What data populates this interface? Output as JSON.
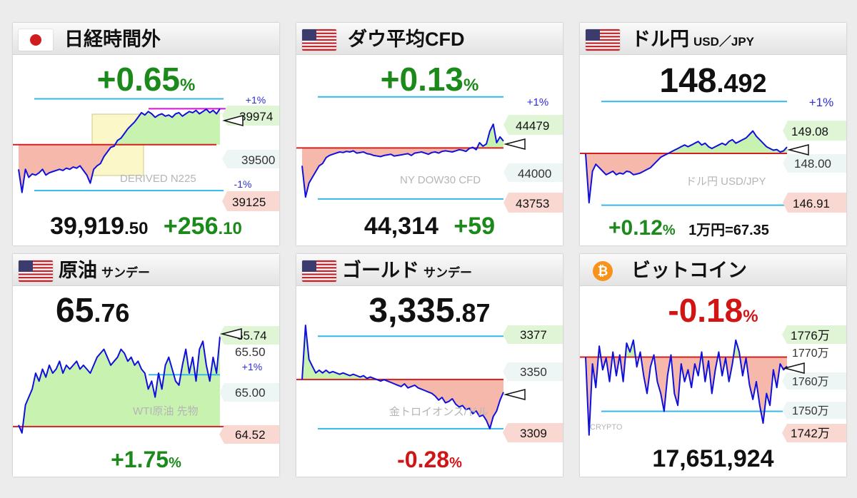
{
  "colors": {
    "up": "#1b8a1b",
    "down": "#d11414",
    "line": "#1010dd",
    "green_fill": "#c8f2b0",
    "red_fill": "#f6b8aa",
    "ref_red": "#d22020",
    "band_blue": "#34b8e8",
    "magenta": "#dd10dd"
  },
  "cards": [
    {
      "title": "日経時間外",
      "subtitle": "",
      "flag": "jp-flag",
      "headline_main": "+0.65",
      "headline_suffix": "%",
      "footer_main": "39,919",
      "footer_decimal": ".50",
      "footer_change": "+256",
      "footer_change_decimal": ".10",
      "watermark": "DERIVED N225",
      "band_label_upper": "+1%",
      "band_label_lower": "-1%",
      "tag_top": "39974",
      "tag_mid": "39500",
      "tag_bottom": "39125"
    },
    {
      "title": "ダウ平均CFD",
      "subtitle": "",
      "flag": "us-flag",
      "headline_main": "+0.13",
      "headline_suffix": "%",
      "footer_main": "44,314",
      "footer_change": "+59",
      "watermark": "NY DOW30 CFD",
      "band_label_upper": "+1%",
      "tag_top": "44479",
      "tag_mid": "44000",
      "tag_bottom": "43753"
    },
    {
      "title": "ドル円",
      "subtitle": "USD／JPY",
      "flag": "us-flag",
      "headline_main": "148",
      "headline_decimal": ".492",
      "footer_change": "+0.12",
      "footer_suffix": "%",
      "footer_extra": "1万円=67.35",
      "watermark": "ドル円 USD/JPY",
      "band_label_upper": "+1%",
      "tag_top": "149.08",
      "tag_mid": "148.00",
      "tag_bottom": "146.91"
    },
    {
      "title": "原油",
      "subtitle": "サンデー",
      "flag": "us-flag",
      "headline_main": "65",
      "headline_decimal": ".76",
      "footer_change": "+1.75",
      "footer_suffix": "%",
      "watermark": "WTI原油 先物",
      "band_label_upper": "+1%",
      "tag_top": "65.74",
      "tag_mid": "65.50",
      "tag_mid2": "65.00",
      "tag_bottom": "64.52"
    },
    {
      "title": "ゴールド",
      "subtitle": "サンデー",
      "flag": "us-flag",
      "headline_main": "3,335",
      "headline_decimal": ".87",
      "footer_change": "-0.28",
      "footer_suffix": "%",
      "watermark": "金トロイオンス/ドル",
      "tag_top": "3377",
      "tag_mid": "3350",
      "tag_bottom": "3309"
    },
    {
      "title": "ビットコイン",
      "subtitle": "",
      "flag": "bitcoin-logo",
      "headline_main": "-0.18",
      "headline_suffix": "%",
      "footer_main": "17,651,924",
      "watermark": "CRYPTO",
      "tag_top": "1776万",
      "tag_1770": "1770万",
      "tag_1760": "1760万",
      "tag_1750": "1750万",
      "tag_bottom": "1742万"
    }
  ],
  "chart_data": [
    {
      "type": "line",
      "title": "日経時間外",
      "reference": 39663,
      "upper_band": 40060,
      "lower_band": 39266,
      "ylim": [
        39100,
        40100
      ],
      "series": [
        {
          "values": [
            39450,
            39250,
            39450,
            39380,
            39410,
            39400,
            39420,
            39450,
            39400,
            39420,
            39430,
            39440,
            39450,
            39440,
            39460,
            39450,
            39470,
            39460,
            39480,
            39440,
            39400,
            39330,
            39450,
            39480,
            39500,
            39560,
            39600,
            39640,
            39650,
            39700,
            39720,
            39760,
            39800,
            39830,
            39860,
            39900,
            39940,
            39920,
            39950,
            39930,
            39900,
            39920,
            39930,
            39910,
            39920,
            39900,
            39930,
            39940,
            39910,
            39930,
            39950,
            39940,
            39960,
            39930,
            39950,
            39970,
            39940,
            39960,
            39930,
            39974
          ]
        }
      ]
    },
    {
      "type": "line",
      "title": "ダウ平均CFD",
      "reference": 44255,
      "upper_band": 44697,
      "lower_band": 43813,
      "ylim": [
        43720,
        44720
      ],
      "series": [
        {
          "values": [
            44100,
            43830,
            43950,
            44000,
            44050,
            44100,
            44120,
            44170,
            44190,
            44200,
            44210,
            44220,
            44215,
            44225,
            44220,
            44230,
            44210,
            44215,
            44220,
            44205,
            44200,
            44190,
            44185,
            44180,
            44190,
            44195,
            44200,
            44185,
            44190,
            44195,
            44200,
            44205,
            44190,
            44210,
            44215,
            44220,
            44210,
            44200,
            44215,
            44220,
            44210,
            44225,
            44230,
            44225,
            44220,
            44230,
            44240,
            44235,
            44225,
            44250,
            44260,
            44240,
            44300,
            44270,
            44290,
            44400,
            44460,
            44300,
            44350,
            44314
          ]
        }
      ]
    },
    {
      "type": "line",
      "title": "ドル円",
      "reference": 148.31,
      "upper_band": 149.79,
      "lower_band": 146.83,
      "ylim": [
        146.7,
        150.0
      ],
      "series": [
        {
          "values": [
            148.3,
            146.9,
            147.8,
            148.0,
            147.9,
            147.8,
            147.7,
            147.75,
            147.8,
            147.7,
            147.75,
            147.72,
            147.8,
            147.78,
            147.7,
            147.72,
            147.75,
            147.8,
            147.85,
            147.9,
            148.0,
            148.1,
            148.2,
            148.25,
            148.3,
            148.35,
            148.4,
            148.45,
            148.5,
            148.55,
            148.5,
            148.55,
            148.6,
            148.65,
            148.55,
            148.6,
            148.5,
            148.45,
            148.5,
            148.55,
            148.6,
            148.55,
            148.65,
            148.7,
            148.6,
            148.65,
            148.7,
            148.75,
            148.85,
            148.95,
            148.8,
            148.7,
            148.6,
            148.5,
            148.45,
            148.4,
            148.42,
            148.35,
            148.38,
            148.49
          ]
        }
      ]
    },
    {
      "type": "line",
      "title": "原油",
      "reference": 64.63,
      "upper_band": 65.28,
      "ylim": [
        64.45,
        65.9
      ],
      "series": [
        {
          "values": [
            64.65,
            64.55,
            64.9,
            65.0,
            65.1,
            65.3,
            65.2,
            65.35,
            65.25,
            65.4,
            65.3,
            65.35,
            65.45,
            65.3,
            65.4,
            65.35,
            65.4,
            65.45,
            65.35,
            65.4,
            65.35,
            65.3,
            65.4,
            65.5,
            65.55,
            65.6,
            65.5,
            65.4,
            65.45,
            65.5,
            65.6,
            65.55,
            65.45,
            65.5,
            65.4,
            65.45,
            65.35,
            65.3,
            65.1,
            65.2,
            65.0,
            65.3,
            65.1,
            65.4,
            65.5,
            65.35,
            65.2,
            65.15,
            65.4,
            65.6,
            65.3,
            65.5,
            65.2,
            65.6,
            65.7,
            65.4,
            65.2,
            65.5,
            65.3,
            65.76
          ]
        }
      ]
    },
    {
      "type": "line",
      "title": "ゴールド",
      "reference": 3345.2,
      "upper_band": 3377,
      "lower_band": 3309,
      "ylim": [
        3300,
        3385
      ],
      "series": [
        {
          "values": [
            3345,
            3385,
            3360,
            3355,
            3350,
            3352,
            3350,
            3352,
            3350,
            3351,
            3350,
            3349,
            3350,
            3349,
            3348,
            3349,
            3348,
            3347,
            3348,
            3346,
            3347,
            3346,
            3345,
            3344,
            3345,
            3344,
            3343,
            3342,
            3341,
            3340,
            3342,
            3339,
            3340,
            3341,
            3339,
            3338,
            3337,
            3336,
            3335,
            3333,
            3330,
            3332,
            3328,
            3329,
            3331,
            3327,
            3325,
            3326,
            3323,
            3324,
            3320,
            3322,
            3318,
            3319,
            3315,
            3309,
            3318,
            3322,
            3330,
            3335.87
          ]
        }
      ]
    },
    {
      "type": "line",
      "title": "ビットコイン",
      "reference": 17683000,
      "lower_band": 17500000,
      "ylim": [
        17400000,
        17790000
      ],
      "series": [
        {
          "values": [
            17683000,
            17420000,
            17660000,
            17580000,
            17720000,
            17640000,
            17680000,
            17600000,
            17700000,
            17620000,
            17690000,
            17600000,
            17730000,
            17700000,
            17740000,
            17650000,
            17700000,
            17620000,
            17560000,
            17650000,
            17690000,
            17600000,
            17560000,
            17500000,
            17620000,
            17690000,
            17560000,
            17520000,
            17660000,
            17600000,
            17640000,
            17580000,
            17660000,
            17620000,
            17700000,
            17600000,
            17670000,
            17560000,
            17640000,
            17700000,
            17620000,
            17680000,
            17600000,
            17660000,
            17740000,
            17700000,
            17620000,
            17680000,
            17590000,
            17540000,
            17600000,
            17520000,
            17460000,
            17560000,
            17520000,
            17640000,
            17580000,
            17660000,
            17640000,
            17652000
          ]
        }
      ]
    }
  ]
}
